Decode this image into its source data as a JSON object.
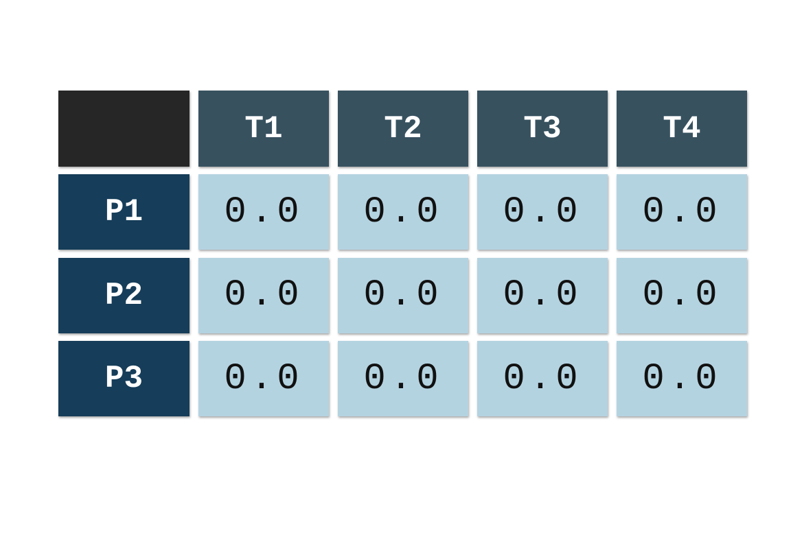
{
  "table": {
    "columns": [
      "T1",
      "T2",
      "T3",
      "T4"
    ],
    "rows": [
      {
        "label": "P1",
        "cells": [
          "0.0",
          "0.0",
          "0.0",
          "0.0"
        ]
      },
      {
        "label": "P2",
        "cells": [
          "0.0",
          "0.0",
          "0.0",
          "0.0"
        ]
      },
      {
        "label": "P3",
        "cells": [
          "0.0",
          "0.0",
          "0.0",
          "0.0"
        ]
      }
    ]
  }
}
